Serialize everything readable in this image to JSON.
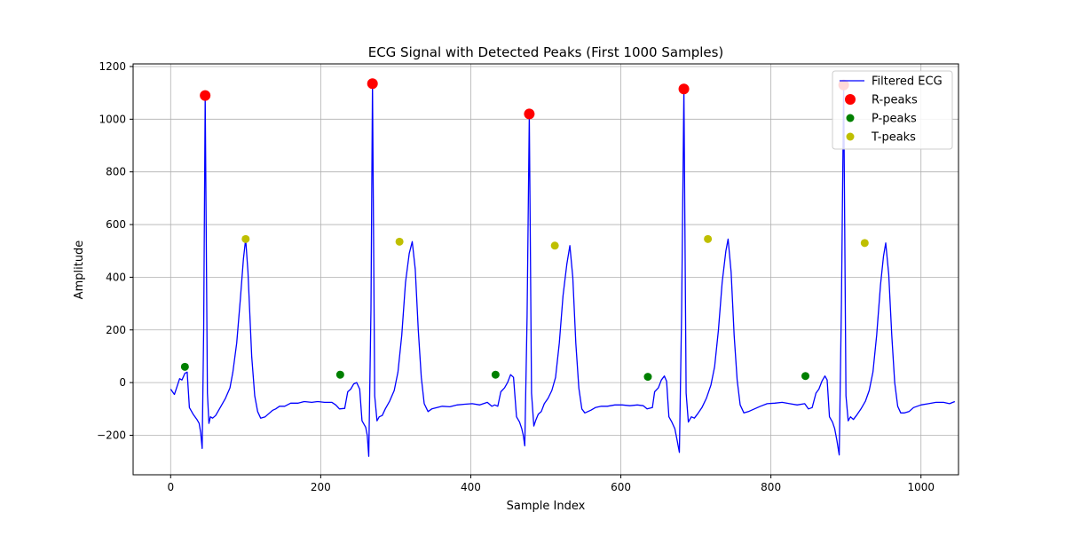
{
  "chart_data": {
    "type": "line",
    "title": "ECG Signal with Detected Peaks (First 1000 Samples)",
    "xlabel": "Sample Index",
    "ylabel": "Amplitude",
    "xlim": [
      -50,
      1050
    ],
    "ylim": [
      -350,
      1210
    ],
    "x_ticks": [
      0,
      200,
      400,
      600,
      800,
      1000
    ],
    "y_ticks": [
      -200,
      0,
      200,
      400,
      600,
      800,
      1000,
      1200
    ],
    "x_tick_labels": [
      "0",
      "200",
      "400",
      "600",
      "800",
      "1000"
    ],
    "y_tick_labels": [
      "−200",
      "0",
      "200",
      "400",
      "600",
      "800",
      "1000",
      "1200"
    ],
    "grid": true,
    "legend_position": "top-right",
    "series": [
      {
        "name": "Filtered ECG",
        "kind": "line",
        "color": "#0000ff",
        "points": [
          [
            0,
            -25
          ],
          [
            5,
            -45
          ],
          [
            8,
            -20
          ],
          [
            12,
            15
          ],
          [
            15,
            10
          ],
          [
            19,
            35
          ],
          [
            22,
            40
          ],
          [
            25,
            -95
          ],
          [
            30,
            -120
          ],
          [
            35,
            -140
          ],
          [
            38,
            -155
          ],
          [
            40,
            -190
          ],
          [
            42,
            -250
          ],
          [
            44,
            200
          ],
          [
            46,
            1090
          ],
          [
            49,
            -40
          ],
          [
            51,
            -155
          ],
          [
            53,
            -130
          ],
          [
            56,
            -135
          ],
          [
            60,
            -125
          ],
          [
            66,
            -95
          ],
          [
            73,
            -60
          ],
          [
            79,
            -20
          ],
          [
            83,
            40
          ],
          [
            88,
            150
          ],
          [
            93,
            320
          ],
          [
            97,
            470
          ],
          [
            100,
            545
          ],
          [
            103,
            420
          ],
          [
            108,
            100
          ],
          [
            112,
            -50
          ],
          [
            116,
            -110
          ],
          [
            120,
            -135
          ],
          [
            126,
            -130
          ],
          [
            130,
            -120
          ],
          [
            136,
            -105
          ],
          [
            140,
            -100
          ],
          [
            145,
            -90
          ],
          [
            152,
            -90
          ],
          [
            160,
            -78
          ],
          [
            170,
            -78
          ],
          [
            178,
            -72
          ],
          [
            188,
            -75
          ],
          [
            196,
            -72
          ],
          [
            205,
            -75
          ],
          [
            215,
            -75
          ],
          [
            220,
            -85
          ],
          [
            225,
            -100
          ],
          [
            232,
            -98
          ],
          [
            236,
            -35
          ],
          [
            240,
            -25
          ],
          [
            244,
            -5
          ],
          [
            248,
            0
          ],
          [
            252,
            -25
          ],
          [
            255,
            -145
          ],
          [
            258,
            -160
          ],
          [
            260,
            -170
          ],
          [
            262,
            -200
          ],
          [
            264,
            -280
          ],
          [
            267,
            280
          ],
          [
            269,
            1135
          ],
          [
            272,
            -50
          ],
          [
            275,
            -145
          ],
          [
            278,
            -130
          ],
          [
            282,
            -125
          ],
          [
            286,
            -100
          ],
          [
            292,
            -70
          ],
          [
            298,
            -30
          ],
          [
            303,
            40
          ],
          [
            308,
            180
          ],
          [
            313,
            380
          ],
          [
            318,
            490
          ],
          [
            322,
            535
          ],
          [
            326,
            430
          ],
          [
            330,
            200
          ],
          [
            334,
            20
          ],
          [
            338,
            -80
          ],
          [
            343,
            -110
          ],
          [
            348,
            -100
          ],
          [
            355,
            -95
          ],
          [
            362,
            -90
          ],
          [
            372,
            -92
          ],
          [
            382,
            -85
          ],
          [
            392,
            -82
          ],
          [
            402,
            -80
          ],
          [
            412,
            -85
          ],
          [
            422,
            -75
          ],
          [
            428,
            -90
          ],
          [
            432,
            -85
          ],
          [
            436,
            -90
          ],
          [
            440,
            -35
          ],
          [
            445,
            -20
          ],
          [
            449,
            0
          ],
          [
            453,
            30
          ],
          [
            457,
            20
          ],
          [
            461,
            -130
          ],
          [
            465,
            -150
          ],
          [
            468,
            -175
          ],
          [
            470,
            -200
          ],
          [
            472,
            -240
          ],
          [
            475,
            250
          ],
          [
            478,
            1020
          ],
          [
            481,
            -40
          ],
          [
            484,
            -165
          ],
          [
            487,
            -140
          ],
          [
            490,
            -120
          ],
          [
            494,
            -110
          ],
          [
            498,
            -80
          ],
          [
            503,
            -60
          ],
          [
            508,
            -30
          ],
          [
            513,
            20
          ],
          [
            518,
            150
          ],
          [
            523,
            330
          ],
          [
            528,
            450
          ],
          [
            532,
            520
          ],
          [
            536,
            400
          ],
          [
            540,
            150
          ],
          [
            544,
            -20
          ],
          [
            548,
            -100
          ],
          [
            552,
            -115
          ],
          [
            556,
            -110
          ],
          [
            560,
            -105
          ],
          [
            566,
            -95
          ],
          [
            574,
            -90
          ],
          [
            582,
            -90
          ],
          [
            592,
            -85
          ],
          [
            602,
            -85
          ],
          [
            612,
            -88
          ],
          [
            622,
            -85
          ],
          [
            630,
            -88
          ],
          [
            635,
            -100
          ],
          [
            642,
            -95
          ],
          [
            645,
            -35
          ],
          [
            650,
            -20
          ],
          [
            654,
            10
          ],
          [
            658,
            25
          ],
          [
            661,
            5
          ],
          [
            664,
            -130
          ],
          [
            668,
            -150
          ],
          [
            672,
            -175
          ],
          [
            675,
            -220
          ],
          [
            678,
            -265
          ],
          [
            681,
            260
          ],
          [
            684,
            1115
          ],
          [
            687,
            -40
          ],
          [
            690,
            -150
          ],
          [
            694,
            -130
          ],
          [
            698,
            -135
          ],
          [
            702,
            -120
          ],
          [
            708,
            -95
          ],
          [
            714,
            -60
          ],
          [
            720,
            -10
          ],
          [
            725,
            60
          ],
          [
            730,
            200
          ],
          [
            735,
            380
          ],
          [
            740,
            500
          ],
          [
            743,
            545
          ],
          [
            747,
            420
          ],
          [
            751,
            180
          ],
          [
            755,
            10
          ],
          [
            759,
            -85
          ],
          [
            764,
            -115
          ],
          [
            770,
            -110
          ],
          [
            778,
            -100
          ],
          [
            786,
            -90
          ],
          [
            795,
            -80
          ],
          [
            805,
            -78
          ],
          [
            815,
            -75
          ],
          [
            825,
            -80
          ],
          [
            835,
            -85
          ],
          [
            845,
            -80
          ],
          [
            850,
            -100
          ],
          [
            855,
            -95
          ],
          [
            860,
            -40
          ],
          [
            864,
            -25
          ],
          [
            868,
            5
          ],
          [
            872,
            25
          ],
          [
            875,
            10
          ],
          [
            878,
            -130
          ],
          [
            882,
            -150
          ],
          [
            885,
            -175
          ],
          [
            888,
            -220
          ],
          [
            891,
            -275
          ],
          [
            894,
            300
          ],
          [
            897,
            1130
          ],
          [
            900,
            -50
          ],
          [
            903,
            -145
          ],
          [
            906,
            -130
          ],
          [
            910,
            -140
          ],
          [
            914,
            -125
          ],
          [
            920,
            -100
          ],
          [
            926,
            -70
          ],
          [
            931,
            -30
          ],
          [
            936,
            40
          ],
          [
            941,
            180
          ],
          [
            946,
            370
          ],
          [
            950,
            480
          ],
          [
            953,
            530
          ],
          [
            957,
            410
          ],
          [
            961,
            180
          ],
          [
            965,
            0
          ],
          [
            969,
            -90
          ],
          [
            973,
            -115
          ],
          [
            978,
            -115
          ],
          [
            984,
            -110
          ],
          [
            990,
            -95
          ],
          [
            1000,
            -85
          ],
          [
            1010,
            -80
          ],
          [
            1020,
            -75
          ],
          [
            1030,
            -75
          ],
          [
            1038,
            -80
          ],
          [
            1045,
            -72
          ]
        ]
      },
      {
        "name": "R-peaks",
        "kind": "scatter",
        "color": "#ff0000",
        "size": "large",
        "points": [
          [
            46,
            1090
          ],
          [
            269,
            1135
          ],
          [
            478,
            1020
          ],
          [
            684,
            1115
          ],
          [
            897,
            1130
          ]
        ]
      },
      {
        "name": "P-peaks",
        "kind": "scatter",
        "color": "#008000",
        "size": "small",
        "points": [
          [
            19,
            60
          ],
          [
            226,
            30
          ],
          [
            433,
            30
          ],
          [
            636,
            22
          ],
          [
            846,
            25
          ]
        ]
      },
      {
        "name": "T-peaks",
        "kind": "scatter",
        "color": "#bfbf00",
        "size": "small",
        "points": [
          [
            100,
            545
          ],
          [
            305,
            535
          ],
          [
            512,
            520
          ],
          [
            716,
            545
          ],
          [
            925,
            530
          ]
        ]
      }
    ]
  }
}
